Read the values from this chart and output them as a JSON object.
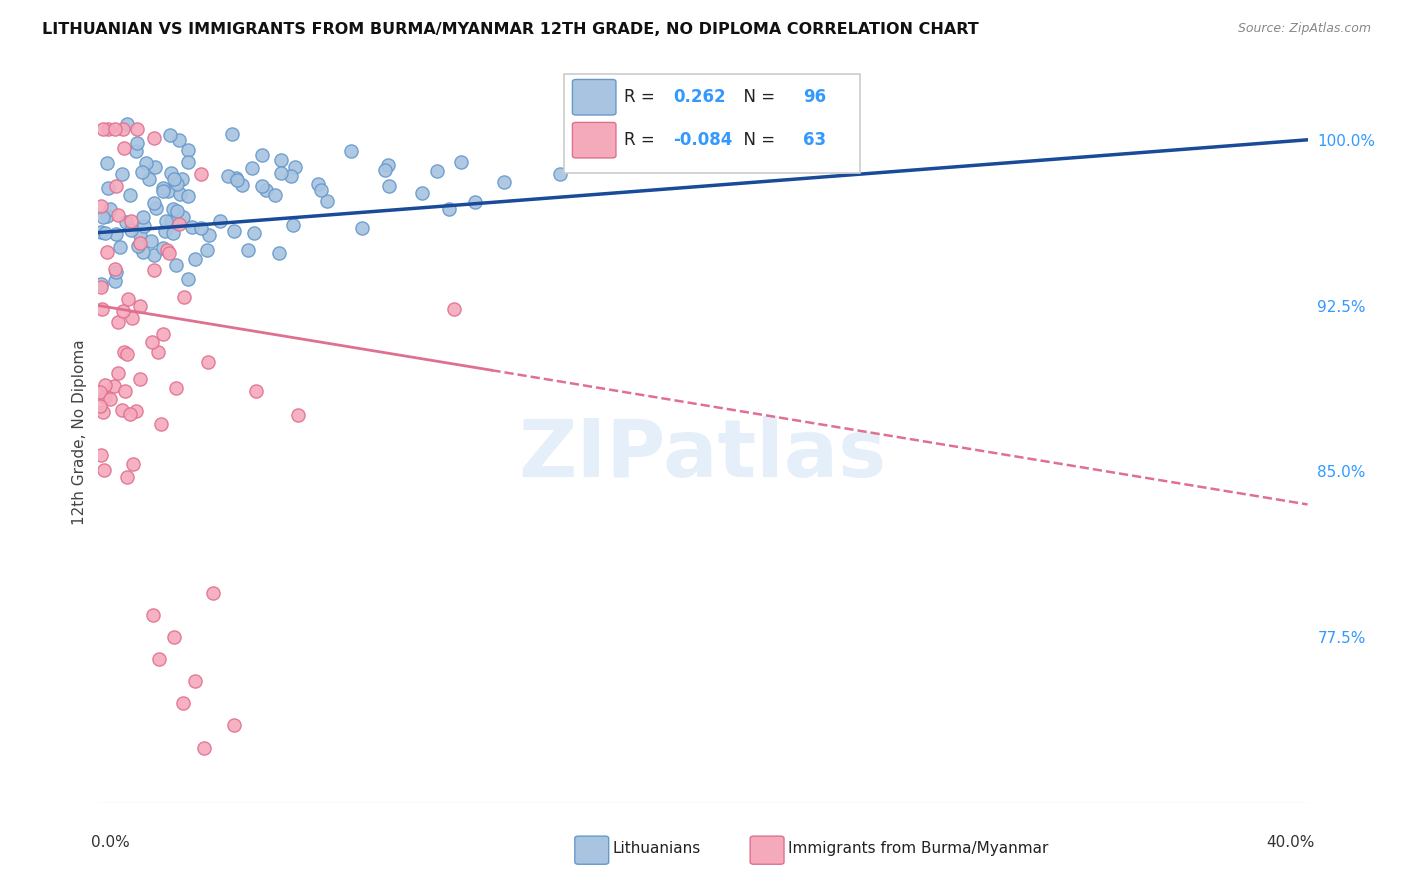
{
  "title": "LITHUANIAN VS IMMIGRANTS FROM BURMA/MYANMAR 12TH GRADE, NO DIPLOMA CORRELATION CHART",
  "source": "Source: ZipAtlas.com",
  "ylabel": "12th Grade, No Diploma",
  "right_ytick_values": [
    100.0,
    92.5,
    85.0,
    77.5
  ],
  "xmin": 0.0,
  "xmax": 40.0,
  "ymin": 70.0,
  "ymax": 103.5,
  "blue_R": 0.262,
  "blue_N": 96,
  "pink_R": -0.084,
  "pink_N": 63,
  "blue_color": "#A8C4E0",
  "blue_edge": "#6699CC",
  "pink_color": "#F5AABC",
  "pink_edge": "#E07090",
  "blue_trend_color": "#1A4A9A",
  "pink_trend_color": "#E07090",
  "watermark": "ZIPatlas",
  "blue_trend_x0": 0.0,
  "blue_trend_y0": 95.8,
  "blue_trend_x1": 40.0,
  "blue_trend_y1": 100.0,
  "pink_trend_x0": 0.0,
  "pink_trend_y0": 92.5,
  "pink_trend_x1": 40.0,
  "pink_trend_y1": 83.5,
  "pink_solid_xmax": 13.0
}
